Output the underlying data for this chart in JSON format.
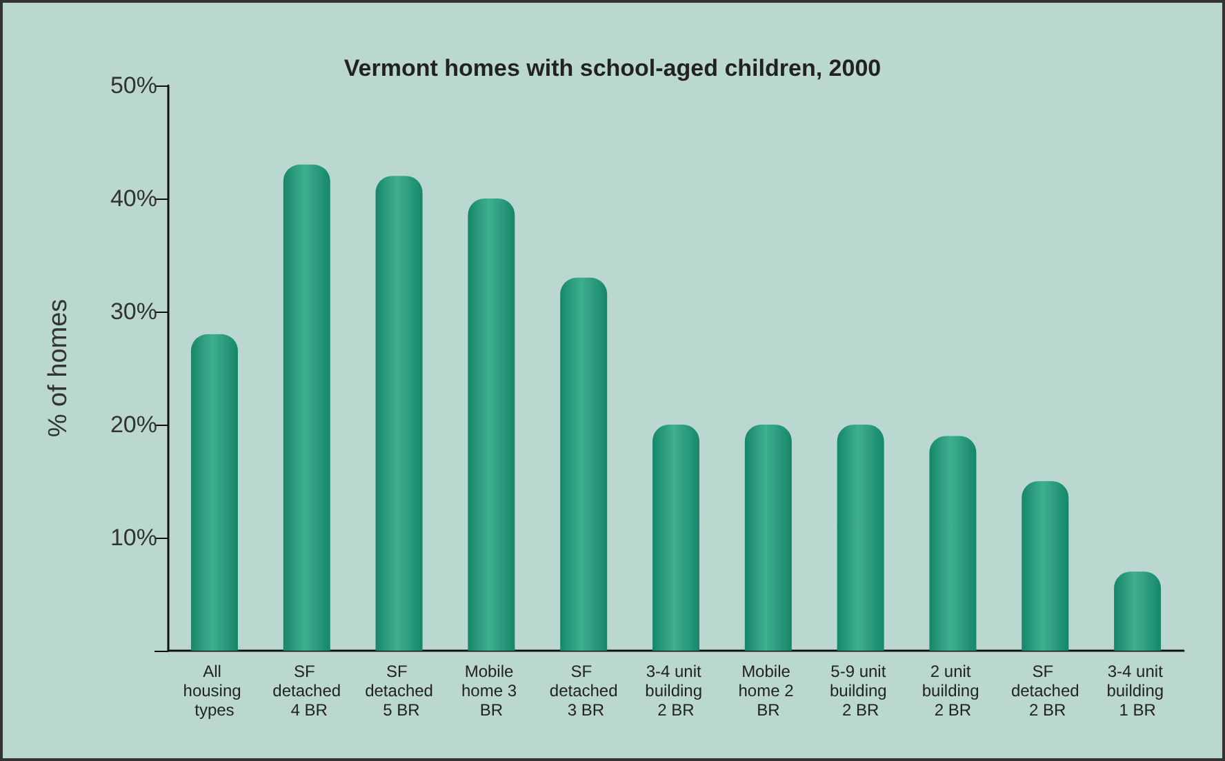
{
  "chart_data": {
    "type": "bar",
    "title": "Vermont homes with school-aged children, 2000",
    "ylabel": "% of homes",
    "categories": [
      "All housing types",
      "SF detached 4 BR",
      "SF detached 5 BR",
      "Mobile home 3 BR",
      "SF detached 3 BR",
      "3-4 unit building 2 BR",
      "Mobile home 2 BR",
      "5-9 unit building 2 BR",
      "2 unit building 2 BR",
      "SF detached 2 BR",
      "3-4 unit building 1 BR"
    ],
    "values": [
      28,
      43,
      42,
      40,
      33,
      20,
      20,
      20,
      19,
      15,
      7
    ],
    "color": "#16866a",
    "ylim": [
      0,
      50
    ],
    "yticks": [
      {
        "value": 0,
        "label": null
      },
      {
        "value": 10,
        "label": "10%"
      },
      {
        "value": 20,
        "label": "20%"
      },
      {
        "value": 30,
        "label": "30%"
      },
      {
        "value": 40,
        "label": "40%"
      },
      {
        "value": 50,
        "label": "50%"
      }
    ],
    "grid": false
  }
}
